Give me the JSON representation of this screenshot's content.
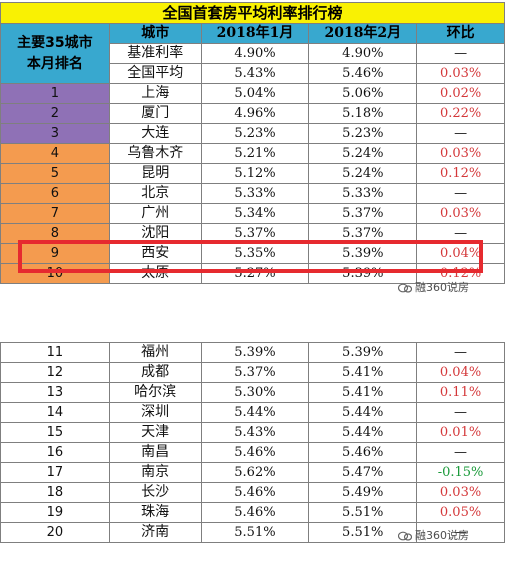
{
  "title": "全国首套房平均利率排行榜",
  "columns": {
    "rank": "主要35城市本月排名",
    "rank_line1": "主要35城市",
    "rank_line2": "本月排名",
    "city": "城市",
    "jan": "2018年1月",
    "feb": "2018年2月",
    "change": "环比"
  },
  "summary_rows": [
    {
      "city": "基准利率",
      "jan": "4.90%",
      "feb": "4.90%",
      "change": "—"
    },
    {
      "city": "全国平均",
      "jan": "5.43%",
      "feb": "5.46%",
      "change": "0.03%"
    }
  ],
  "top_rows": [
    {
      "rank": "1",
      "city": "上海",
      "jan": "5.04%",
      "feb": "5.06%",
      "change": "0.02%"
    },
    {
      "rank": "2",
      "city": "厦门",
      "jan": "4.96%",
      "feb": "5.18%",
      "change": "0.22%"
    },
    {
      "rank": "3",
      "city": "大连",
      "jan": "5.23%",
      "feb": "5.23%",
      "change": "—"
    },
    {
      "rank": "4",
      "city": "乌鲁木齐",
      "jan": "5.21%",
      "feb": "5.24%",
      "change": "0.03%"
    },
    {
      "rank": "5",
      "city": "昆明",
      "jan": "5.12%",
      "feb": "5.24%",
      "change": "0.12%"
    },
    {
      "rank": "6",
      "city": "北京",
      "jan": "5.33%",
      "feb": "5.33%",
      "change": "—"
    },
    {
      "rank": "7",
      "city": "广州",
      "jan": "5.34%",
      "feb": "5.37%",
      "change": "0.03%"
    },
    {
      "rank": "8",
      "city": "沈阳",
      "jan": "5.37%",
      "feb": "5.37%",
      "change": "—"
    },
    {
      "rank": "9",
      "city": "西安",
      "jan": "5.35%",
      "feb": "5.39%",
      "change": "0.04%"
    },
    {
      "rank": "10",
      "city": "太原",
      "jan": "5.27%",
      "feb": "5.39%",
      "change": "0.12%"
    }
  ],
  "bottom_rows": [
    {
      "rank": "11",
      "city": "福州",
      "jan": "5.39%",
      "feb": "5.39%",
      "change": "—"
    },
    {
      "rank": "12",
      "city": "成都",
      "jan": "5.37%",
      "feb": "5.41%",
      "change": "0.04%"
    },
    {
      "rank": "13",
      "city": "哈尔滨",
      "jan": "5.30%",
      "feb": "5.41%",
      "change": "0.11%"
    },
    {
      "rank": "14",
      "city": "深圳",
      "jan": "5.44%",
      "feb": "5.44%",
      "change": "—"
    },
    {
      "rank": "15",
      "city": "天津",
      "jan": "5.43%",
      "feb": "5.44%",
      "change": "0.01%"
    },
    {
      "rank": "16",
      "city": "南昌",
      "jan": "5.46%",
      "feb": "5.46%",
      "change": "—"
    },
    {
      "rank": "17",
      "city": "南京",
      "jan": "5.62%",
      "feb": "5.47%",
      "change": "-0.15%"
    },
    {
      "rank": "18",
      "city": "长沙",
      "jan": "5.46%",
      "feb": "5.49%",
      "change": "0.03%"
    },
    {
      "rank": "19",
      "city": "珠海",
      "jan": "5.46%",
      "feb": "5.51%",
      "change": "0.05%"
    },
    {
      "rank": "20",
      "city": "济南",
      "jan": "5.51%",
      "feb": "5.51%",
      "change": "—"
    }
  ],
  "watermark": "融360说房",
  "colors": {
    "title_bg": "#f9f103",
    "header_bg": "#38a8cf",
    "top3_bg": "#8f71b6",
    "top10_bg": "#f49b4f",
    "increase": "#d4383a",
    "decrease": "#1a9a3a",
    "highlight_border": "#e62a2f"
  }
}
